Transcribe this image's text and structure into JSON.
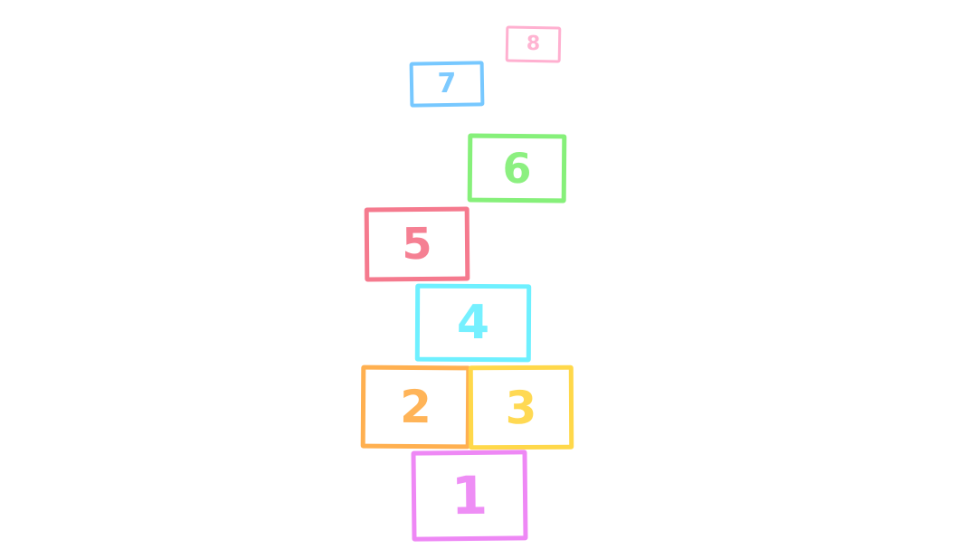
{
  "hopscotch": {
    "squares": [
      {
        "label": "1",
        "color": "#ee88f5"
      },
      {
        "label": "2",
        "color": "#ffb050"
      },
      {
        "label": "3",
        "color": "#ffd84a"
      },
      {
        "label": "4",
        "color": "#6ef0ff"
      },
      {
        "label": "5",
        "color": "#f57a8e"
      },
      {
        "label": "6",
        "color": "#86f07a"
      },
      {
        "label": "7",
        "color": "#77c8ff"
      },
      {
        "label": "8",
        "color": "#ffb0d0"
      }
    ]
  }
}
